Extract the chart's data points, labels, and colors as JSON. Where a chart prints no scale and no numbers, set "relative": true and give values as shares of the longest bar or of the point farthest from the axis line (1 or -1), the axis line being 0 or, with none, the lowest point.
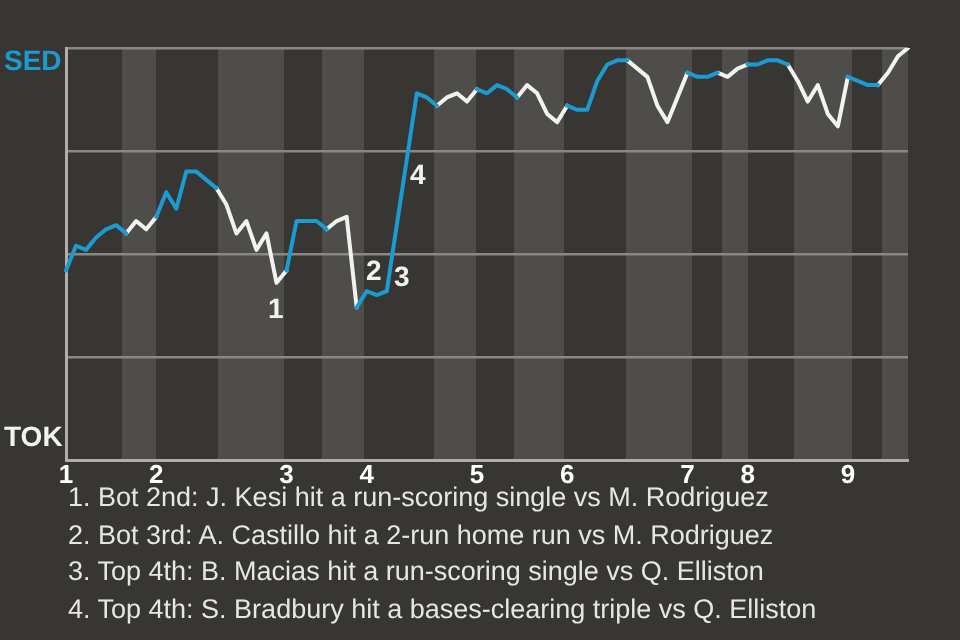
{
  "chart_data": {
    "type": "line",
    "relative": true,
    "categories": [
      "1",
      null,
      null,
      null,
      null,
      null,
      null,
      null,
      null,
      "2",
      null,
      null,
      null,
      null,
      null,
      null,
      null,
      null,
      null,
      null,
      null,
      null,
      "3",
      null,
      null,
      null,
      null,
      null,
      null,
      null,
      "4",
      null,
      null,
      null,
      null,
      null,
      null,
      null,
      null,
      null,
      null,
      "5",
      null,
      null,
      null,
      null,
      null,
      null,
      null,
      null,
      "6",
      null,
      null,
      null,
      null,
      null,
      null,
      null,
      null,
      null,
      null,
      null,
      "7",
      null,
      null,
      null,
      null,
      null,
      "8",
      null,
      null,
      null,
      null,
      null,
      null,
      null,
      null,
      null,
      "9",
      null,
      null,
      null,
      null,
      null,
      null
    ],
    "series": [
      {
        "color": "#1a9bd1",
        "values": [
          0.46,
          0.52,
          0.51,
          0.54,
          0.56,
          0.57,
          0.55,
          null,
          null,
          0.59,
          0.65,
          0.61,
          0.7,
          0.7,
          0.68,
          0.66,
          null,
          null,
          null,
          null,
          null,
          null,
          0.46,
          0.58,
          0.58,
          0.58,
          0.56,
          null,
          null,
          0.37,
          0.41,
          0.4,
          0.41,
          0.57,
          0.73,
          0.89,
          0.88,
          0.86,
          null,
          null,
          null,
          0.9,
          0.89,
          0.91,
          0.9,
          0.88,
          null,
          null,
          null,
          null,
          0.86,
          0.85,
          0.85,
          0.92,
          0.96,
          0.97,
          0.97,
          null,
          null,
          null,
          null,
          null,
          0.94,
          0.93,
          0.93,
          0.94,
          null,
          null,
          0.96,
          0.96,
          0.97,
          0.97,
          0.96,
          null,
          null,
          null,
          null,
          null,
          0.93,
          0.92,
          0.91,
          0.91,
          null,
          null,
          null
        ]
      },
      {
        "color": "#f2f2f2",
        "values": [
          null,
          null,
          null,
          null,
          null,
          null,
          0.55,
          0.58,
          0.56,
          0.59,
          null,
          null,
          null,
          null,
          null,
          0.66,
          0.62,
          0.55,
          0.58,
          0.51,
          0.55,
          0.43,
          0.46,
          null,
          null,
          null,
          0.56,
          0.58,
          0.59,
          0.37,
          null,
          null,
          null,
          null,
          null,
          null,
          null,
          0.86,
          0.88,
          0.89,
          0.87,
          0.9,
          null,
          null,
          null,
          0.88,
          0.91,
          0.89,
          0.84,
          0.82,
          0.86,
          null,
          null,
          null,
          null,
          null,
          0.97,
          0.95,
          0.93,
          0.86,
          0.82,
          0.88,
          0.94,
          null,
          null,
          0.94,
          0.93,
          0.95,
          0.96,
          null,
          null,
          null,
          0.96,
          0.92,
          0.87,
          0.91,
          0.84,
          0.81,
          0.93,
          null,
          null,
          0.91,
          0.94,
          0.98,
          1
        ]
      }
    ],
    "grid": "y",
    "legend": false,
    "marker": "none",
    "line_style": "solid",
    "annotations": [
      "SED",
      "TOK",
      "1",
      "2",
      "3",
      "4",
      "1. Bot 2nd: J. Kesi hit a run-scoring single vs M. Rodriguez",
      "2. Bot 3rd: A. Castillo hit a 2-run home run vs M. Rodriguez",
      "3. Top 4th: B. Macias hit a run-scoring single vs Q. Elliston",
      "4. Top 4th: S. Bradbury hit a bases-clearing triple vs Q. Elliston"
    ]
  }
}
